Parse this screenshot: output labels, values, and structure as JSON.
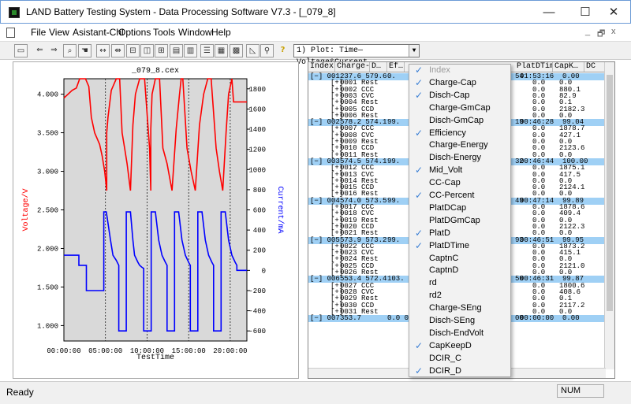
{
  "window": {
    "title": "LAND Battery Testing System - Data Processing Software V7.3 - [_079_8]",
    "minimize": "—",
    "maximize": "☐",
    "close": "✕"
  },
  "menubar": {
    "items": [
      "File",
      "View",
      "Asistant-Chl",
      "Options",
      "Tools",
      "Window",
      "Help"
    ],
    "mdi_min": "_",
    "mdi_restore": "🗗",
    "mdi_close": "x"
  },
  "toolbar": {
    "plot_selector": "1) Plot: Time—Voltage&Current"
  },
  "chart": {
    "title": "_079_8.cex",
    "xlabel": "TestTime",
    "ylabel_left": "Voltage/V",
    "ylabel_right": "Current/mA",
    "colors": {
      "voltage": "#ff0000",
      "current": "#0000ff",
      "plotbg": "#d9d9d9"
    }
  },
  "chart_data": {
    "type": "line",
    "x_ticks": [
      "00:00:00",
      "05:00:00",
      "10:00:00",
      "15:00:00",
      "20:00:00"
    ],
    "xlim_hours": [
      0,
      22
    ],
    "y_left_ticks": [
      "4.000",
      "3.500",
      "3.000",
      "2.500",
      "2.000",
      "1.500",
      "1.000"
    ],
    "y_left_lim": [
      0.8,
      4.2
    ],
    "y_right_ticks": [
      "1800",
      "1600",
      "1400",
      "1200",
      "1000",
      "800",
      "600",
      "400",
      "200",
      "0",
      "-200",
      "-400",
      "-600"
    ],
    "y_right_lim": [
      -700,
      1900
    ],
    "series": [
      {
        "name": "Voltage",
        "axis": "left",
        "x": [
          0,
          0.5,
          1,
          1.5,
          1.9,
          2.2,
          2.6,
          3,
          3.3,
          3.7,
          4.3,
          4.6,
          4.9,
          5.15,
          5.15,
          5.3,
          5.7,
          6.3,
          6.7,
          7,
          7.3,
          7.6,
          8,
          8.3,
          8.6,
          9.1,
          9.7,
          10.3,
          10.45,
          10.45,
          10.6,
          11,
          11.5,
          11.9,
          12.4,
          13,
          13.5,
          13.9,
          14.1,
          14.3,
          14.8,
          15.3,
          15.8,
          16.3,
          16.8,
          17.3,
          17.7,
          18.3,
          18.7,
          19.1,
          19.5,
          19.8,
          20.2,
          20.4,
          21,
          21.5,
          22
        ],
        "y": [
          3.95,
          4.0,
          4.05,
          4.08,
          4.2,
          4.2,
          4.2,
          4.1,
          3.7,
          3.5,
          3.35,
          3.2,
          3.0,
          2.75,
          3.5,
          3.7,
          4.05,
          4.2,
          4.2,
          3.5,
          3.3,
          3.1,
          2.75,
          3.6,
          4.0,
          4.2,
          4.2,
          3.3,
          2.75,
          3.55,
          4.0,
          4.2,
          4.2,
          3.3,
          3.1,
          2.75,
          3.55,
          4.0,
          4.2,
          4.2,
          3.3,
          3.0,
          2.75,
          3.6,
          4.0,
          4.2,
          4.2,
          3.3,
          3.0,
          2.75,
          3.5,
          4.0,
          4.2,
          3.9,
          3.9,
          3.9,
          3.9
        ]
      },
      {
        "name": "Current",
        "axis": "right",
        "x": [
          0,
          1.8,
          1.8,
          2.7,
          2.7,
          4.8,
          4.8,
          5.1,
          5.1,
          5.6,
          5.9,
          6.3,
          6.6,
          6.6,
          7.5,
          7.5,
          8,
          8.3,
          8.5,
          8.9,
          9.1,
          9.4,
          9.6,
          9.6,
          10.5,
          10.5,
          11,
          11.4,
          11.8,
          12.2,
          12.4,
          12.4,
          13.3,
          13.3,
          13.8,
          14.2,
          14.6,
          15,
          15.2,
          15.2,
          16.1,
          16.1,
          16.6,
          17,
          17.4,
          17.8,
          18.0,
          18.0,
          18.9,
          18.9,
          19.4,
          19.8,
          20.2,
          20.6,
          20.8,
          20.8,
          22
        ],
        "y": [
          150,
          150,
          50,
          50,
          -200,
          -200,
          580,
          580,
          580,
          300,
          150,
          100,
          50,
          -600,
          -600,
          580,
          580,
          300,
          150,
          80,
          50,
          30,
          20,
          -600,
          -600,
          580,
          580,
          300,
          150,
          80,
          50,
          -600,
          -600,
          580,
          580,
          300,
          150,
          80,
          50,
          -600,
          -600,
          580,
          580,
          300,
          150,
          80,
          50,
          -600,
          -600,
          580,
          580,
          300,
          150,
          80,
          50,
          0,
          0
        ]
      }
    ]
  },
  "table": {
    "headers": [
      "Index",
      "Charge-…",
      "D…",
      "Ef…",
      "",
      "PlatDTime",
      "CapK…",
      "DC"
    ],
    "rows": [
      {
        "type": "cycle",
        "index": "[−] 001",
        "cap": "237.6 579.6",
        "ef": "0.",
        "mid": "54",
        "pdt": "01:53:16",
        "capk": "0.00"
      },
      {
        "type": "step",
        "index": "0001 Rest",
        "pdt": "0.0",
        "capk": "0.0"
      },
      {
        "type": "step",
        "index": "0002 CCC",
        "pdt": "0.0",
        "capk": "880.1"
      },
      {
        "type": "step",
        "index": "0003 CVC",
        "pdt": "0.0",
        "capk": "82.9"
      },
      {
        "type": "step",
        "index": "0004 Rest",
        "pdt": "0.0",
        "capk": "0.1"
      },
      {
        "type": "step",
        "index": "0005 CCD",
        "pdt": "0.0",
        "capk": "2182.3"
      },
      {
        "type": "step",
        "index": "0006 Rest",
        "pdt": "0.0",
        "capk": "0.0"
      },
      {
        "type": "cycle",
        "index": "[−] 002",
        "cap": "578.2 574.1",
        "ef": "99.",
        "mid": "19",
        "pdt": "00:46:28",
        "capk": "99.04"
      },
      {
        "type": "step",
        "index": "0007 CCC",
        "pdt": "0.0",
        "capk": "1878.7"
      },
      {
        "type": "step",
        "index": "0008 CVC",
        "pdt": "0.0",
        "capk": "427.1"
      },
      {
        "type": "step",
        "index": "0009 Rest",
        "pdt": "0.0",
        "capk": "0.0"
      },
      {
        "type": "step",
        "index": "0010 CCD",
        "pdt": "0.0",
        "capk": "2123.6"
      },
      {
        "type": "step",
        "index": "0011 Rest",
        "pdt": "0.0",
        "capk": "0.0"
      },
      {
        "type": "cycle",
        "index": "[−] 003",
        "cap": "574.5 574.1",
        "ef": "99.",
        "mid": "32",
        "pdt": "00:46:44",
        "capk": "100.00"
      },
      {
        "type": "step",
        "index": "0012 CCC",
        "pdt": "0.0",
        "capk": "1875.1"
      },
      {
        "type": "step",
        "index": "0013 CVC",
        "pdt": "0.0",
        "capk": "417.5"
      },
      {
        "type": "step",
        "index": "0014 Rest",
        "pdt": "0.0",
        "capk": "0.0"
      },
      {
        "type": "step",
        "index": "0015 CCD",
        "pdt": "0.0",
        "capk": "2124.1"
      },
      {
        "type": "step",
        "index": "0016 Rest",
        "pdt": "0.0",
        "capk": "0.0"
      },
      {
        "type": "cycle",
        "index": "[−] 004",
        "cap": "574.0 573.5",
        "ef": "99.",
        "mid": "49",
        "pdt": "00:47:14",
        "capk": "99.89"
      },
      {
        "type": "step",
        "index": "0017 CCC",
        "pdt": "0.0",
        "capk": "1878.6"
      },
      {
        "type": "step",
        "index": "0018 CVC",
        "pdt": "0.0",
        "capk": "409.4"
      },
      {
        "type": "step",
        "index": "0019 Rest",
        "pdt": "0.0",
        "capk": "0.0"
      },
      {
        "type": "step",
        "index": "0020 CCD",
        "pdt": "0.0",
        "capk": "2122.3"
      },
      {
        "type": "step",
        "index": "0021 Rest",
        "pdt": "0.0",
        "capk": "0.0"
      },
      {
        "type": "cycle",
        "index": "[−] 005",
        "cap": "573.9 573.2",
        "ef": "99.",
        "mid": "93",
        "pdt": "00:46:51",
        "capk": "99.95"
      },
      {
        "type": "step",
        "index": "0022 CCC",
        "pdt": "0.0",
        "capk": "1873.2"
      },
      {
        "type": "step",
        "index": "0023 CVC",
        "pdt": "0.0",
        "capk": "415.1"
      },
      {
        "type": "step",
        "index": "0024 Rest",
        "pdt": "0.0",
        "capk": "0.0"
      },
      {
        "type": "step",
        "index": "0025 CCD",
        "pdt": "0.0",
        "capk": "2121.0"
      },
      {
        "type": "step",
        "index": "0026 Rest",
        "pdt": "0.0",
        "capk": "0.0"
      },
      {
        "type": "cycle",
        "index": "[−] 006",
        "cap": "553.4 572.4",
        "ef": "103.",
        "mid": "50",
        "pdt": "00:46:31",
        "capk": "99.87"
      },
      {
        "type": "step",
        "index": "0027 CCC",
        "pdt": "0.0",
        "capk": "1800.6"
      },
      {
        "type": "step",
        "index": "0028 CVC",
        "pdt": "0.0",
        "capk": "408.6"
      },
      {
        "type": "step",
        "index": "0029 Rest",
        "pdt": "0.0",
        "capk": "0.1"
      },
      {
        "type": "step",
        "index": "0030 CCD",
        "pdt": "0.0",
        "capk": "2117.2"
      },
      {
        "type": "step",
        "index": "0031 Rest",
        "pdt": "0.0",
        "capk": "0.0"
      },
      {
        "type": "cycle",
        "index": "[−] 007",
        "cap": "353.7",
        "ef": "0.0 0.0",
        "mid": "00",
        "pdt": "00:00:00",
        "capk": "0.00"
      }
    ]
  },
  "context_menu": {
    "items": [
      {
        "label": "Index",
        "checked": true,
        "disabled": true
      },
      {
        "label": "Charge-Cap",
        "checked": true
      },
      {
        "label": "Disch-Cap",
        "checked": true
      },
      {
        "label": "Charge-GmCap",
        "checked": false
      },
      {
        "label": "Disch-GmCap",
        "checked": false
      },
      {
        "label": "Efficiency",
        "checked": true
      },
      {
        "label": "Charge-Energy",
        "checked": false
      },
      {
        "label": "Disch-Energy",
        "checked": false
      },
      {
        "label": "Mid_Volt",
        "checked": true
      },
      {
        "label": "CC-Cap",
        "checked": false
      },
      {
        "label": "CC-Percent",
        "checked": true
      },
      {
        "label": "PlatDCap",
        "checked": false
      },
      {
        "label": "PlatDGmCap",
        "checked": false
      },
      {
        "label": "PlatD",
        "checked": true
      },
      {
        "label": "PlatDTime",
        "checked": true
      },
      {
        "label": "CaptnC",
        "checked": false
      },
      {
        "label": "CaptnD",
        "checked": false
      },
      {
        "label": "rd",
        "checked": false
      },
      {
        "label": "rd2",
        "checked": false
      },
      {
        "label": "Charge-SEng",
        "checked": false
      },
      {
        "label": "Disch-SEng",
        "checked": false
      },
      {
        "label": "Disch-EndVolt",
        "checked": false
      },
      {
        "label": "CapKeepD",
        "checked": true
      },
      {
        "label": "DCIR_C",
        "checked": false
      },
      {
        "label": "DCIR_D",
        "checked": true
      }
    ],
    "check_glyph": "✓"
  },
  "statusbar": {
    "status": "Ready",
    "num": "NUM"
  }
}
